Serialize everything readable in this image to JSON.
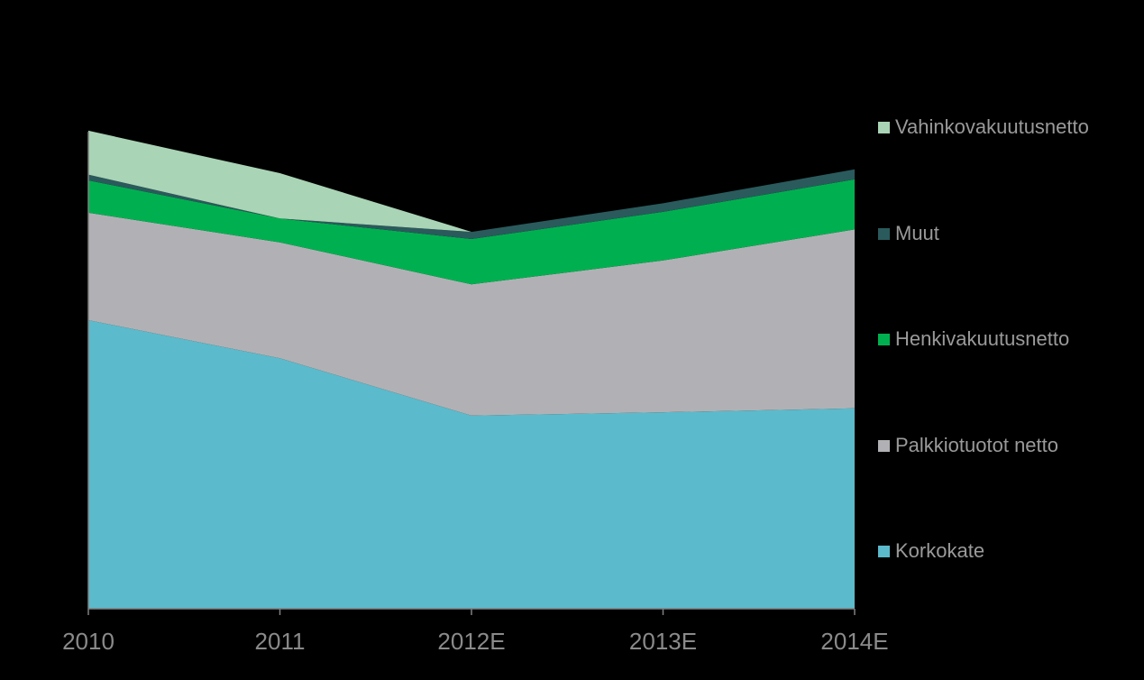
{
  "chart_data": {
    "type": "area",
    "stacked": true,
    "categories": [
      "2010",
      "2011",
      "2012E",
      "2013E",
      "2014E"
    ],
    "ylim": [
      0,
      100
    ],
    "grid": false,
    "legend_position": "right",
    "series": [
      {
        "name": "Korkokate",
        "color": "#5bbacb",
        "values": [
          60.5,
          52.5,
          40.5,
          41.2,
          42.0
        ]
      },
      {
        "name": "Palkkiotuotot netto",
        "color": "#b1b1b5",
        "values": [
          22.5,
          24.3,
          27.5,
          31.8,
          37.5
        ]
      },
      {
        "name": "Henkivakuutusnetto",
        "color": "#00b050",
        "values": [
          6.8,
          5.0,
          9.5,
          10.2,
          10.5
        ]
      },
      {
        "name": "Muut",
        "color": "#2a5a5c",
        "values": [
          1.2,
          0.0,
          1.5,
          1.8,
          2.1
        ]
      },
      {
        "name": "Vahinkovakuutusnetto",
        "color": "#a9d4b5",
        "values": [
          9.2,
          9.5,
          0.0,
          0.0,
          0.0
        ]
      }
    ]
  }
}
